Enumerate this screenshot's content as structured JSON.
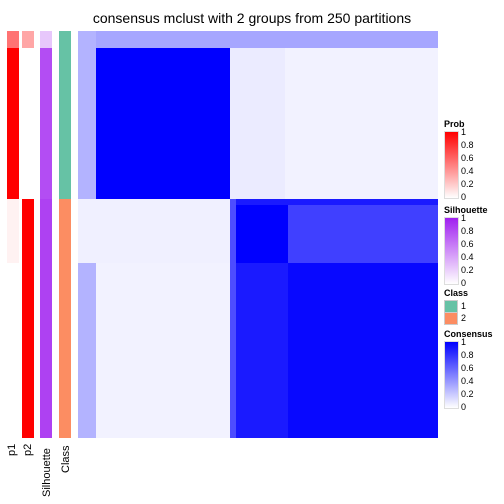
{
  "chart_data": {
    "type": "heatmap",
    "title": "consensus mclust with 2 groups from 250 partitions",
    "annotation_columns": [
      "p1",
      "p2",
      "Silhouette",
      "Class"
    ],
    "sample_blocks": [
      {
        "class": "1",
        "p1": 1.0,
        "p2": 0.0,
        "silhouette": 0.8,
        "consensus_within": 1.0,
        "consensus_other": 0.05
      },
      {
        "class": "2",
        "p1": 0.0,
        "p2": 1.0,
        "silhouette": 0.85,
        "consensus_within": 0.9,
        "consensus_other": 0.05
      }
    ],
    "legends": [
      {
        "title": "Prob",
        "ticks": [
          "1",
          "0.8",
          "0.6",
          "0.4",
          "0.2",
          "0"
        ],
        "low": "#ffffff",
        "high": "#ff0000"
      },
      {
        "title": "Silhouette",
        "ticks": [
          "1",
          "0.8",
          "0.6",
          "0.4",
          "0.2",
          "0"
        ],
        "low": "#ffffff",
        "high": "#a020f0"
      },
      {
        "title": "Class",
        "entries": [
          {
            "label": "1",
            "color": "#66c2a5"
          },
          {
            "label": "2",
            "color": "#fc8d62"
          }
        ]
      },
      {
        "title": "Consensus",
        "ticks": [
          "1",
          "0.8",
          "0.6",
          "0.4",
          "0.2",
          "0"
        ],
        "low": "#ffffff",
        "high": "#0000ff"
      }
    ]
  }
}
